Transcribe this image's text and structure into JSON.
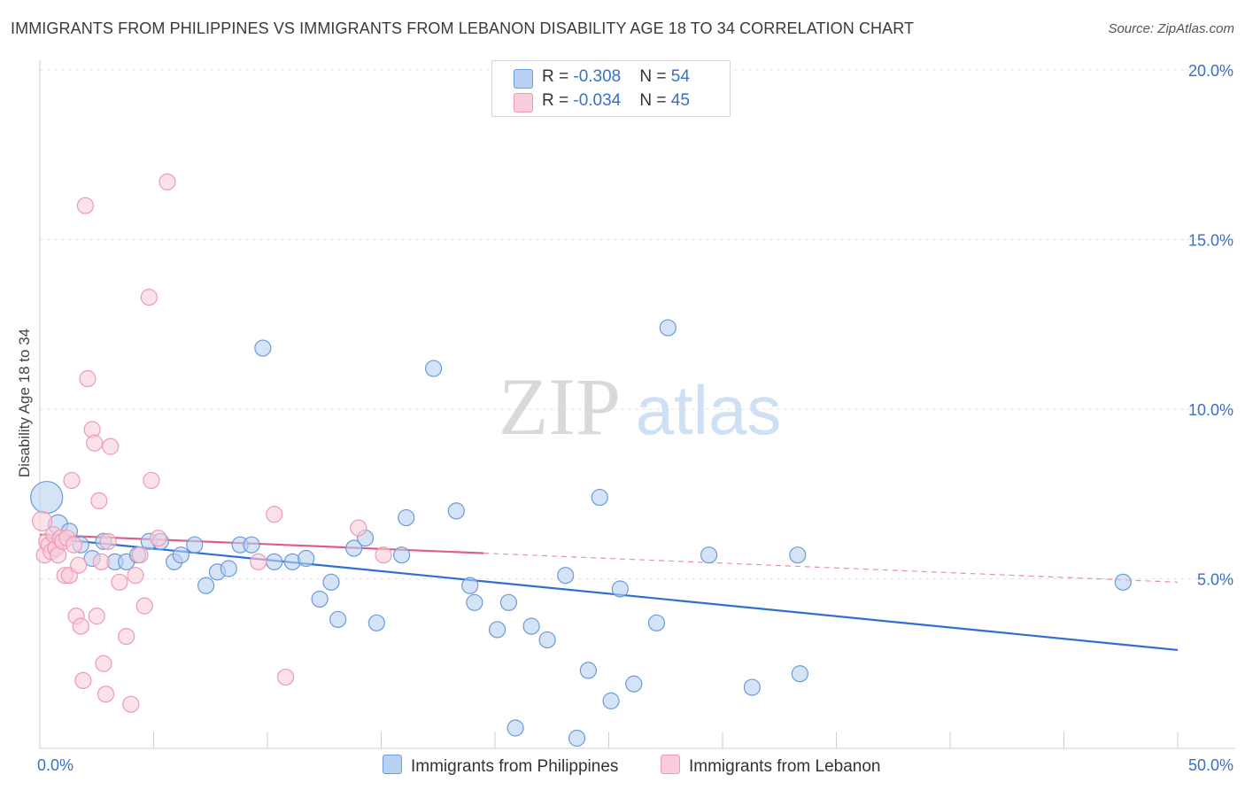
{
  "chart_data": {
    "type": "scatter",
    "title": "IMMIGRANTS FROM PHILIPPINES VS IMMIGRANTS FROM LEBANON DISABILITY AGE 18 TO 34 CORRELATION CHART",
    "source": "Source: ZipAtlas.com",
    "watermark": {
      "zip": "ZIP",
      "atlas": "atlas"
    },
    "ylabel": "Disability Age 18 to 34",
    "xlim": [
      0,
      50
    ],
    "ylim": [
      0,
      20
    ],
    "x_tick_labels": {
      "min": "0.0%",
      "max": "50.0%"
    },
    "y_ticks": [
      {
        "value": 5,
        "label": "5.0%"
      },
      {
        "value": 10,
        "label": "10.0%"
      },
      {
        "value": 15,
        "label": "15.0%"
      },
      {
        "value": 20,
        "label": "20.0%"
      }
    ],
    "legend": [
      {
        "r_label": "R = ",
        "r_value": "-0.308",
        "n_label": "N = ",
        "n_value": "54"
      },
      {
        "r_label": "R = ",
        "r_value": "-0.034",
        "n_label": "N = ",
        "n_value": "45"
      }
    ],
    "series": [
      {
        "name": "Immigrants from Philippines",
        "color": "#6b9bd8",
        "fill": "#b9d1f0",
        "trend_color": "#2f6fd0",
        "trend": {
          "x0": 0.3,
          "y0": 6.2,
          "x1": 50.0,
          "y1": 2.9,
          "dash_from": null
        },
        "points": [
          [
            0.3,
            7.4,
            18
          ],
          [
            0.8,
            6.6,
            11
          ],
          [
            1.3,
            6.4,
            9
          ],
          [
            1.8,
            6.0,
            9
          ],
          [
            2.3,
            5.6,
            9
          ],
          [
            2.8,
            6.1,
            9
          ],
          [
            3.3,
            5.5,
            9
          ],
          [
            3.8,
            5.5,
            9
          ],
          [
            4.3,
            5.7,
            9
          ],
          [
            4.8,
            6.1,
            9
          ],
          [
            5.3,
            6.1,
            9
          ],
          [
            5.9,
            5.5,
            9
          ],
          [
            6.2,
            5.7,
            9
          ],
          [
            6.8,
            6.0,
            9
          ],
          [
            7.3,
            4.8,
            9
          ],
          [
            7.8,
            5.2,
            9
          ],
          [
            8.3,
            5.3,
            9
          ],
          [
            8.8,
            6.0,
            9
          ],
          [
            9.3,
            6.0,
            9
          ],
          [
            9.8,
            11.8,
            9
          ],
          [
            10.3,
            5.5,
            9
          ],
          [
            11.1,
            5.5,
            9
          ],
          [
            11.7,
            5.6,
            9
          ],
          [
            12.3,
            4.4,
            9
          ],
          [
            12.8,
            4.9,
            9
          ],
          [
            13.1,
            3.8,
            9
          ],
          [
            13.8,
            5.9,
            9
          ],
          [
            14.3,
            6.2,
            9
          ],
          [
            14.8,
            3.7,
            9
          ],
          [
            15.9,
            5.7,
            9
          ],
          [
            16.1,
            6.8,
            9
          ],
          [
            17.3,
            11.2,
            9
          ],
          [
            18.3,
            7.0,
            9
          ],
          [
            18.9,
            4.8,
            9
          ],
          [
            19.1,
            4.3,
            9
          ],
          [
            20.1,
            3.5,
            9
          ],
          [
            20.6,
            4.3,
            9
          ],
          [
            20.9,
            0.6,
            9
          ],
          [
            21.6,
            3.6,
            9
          ],
          [
            22.3,
            3.2,
            9
          ],
          [
            23.1,
            5.1,
            9
          ],
          [
            23.6,
            0.3,
            9
          ],
          [
            24.1,
            2.3,
            9
          ],
          [
            24.6,
            7.4,
            9
          ],
          [
            25.1,
            1.4,
            9
          ],
          [
            25.5,
            4.7,
            9
          ],
          [
            26.1,
            1.9,
            9
          ],
          [
            27.1,
            3.7,
            9
          ],
          [
            27.6,
            12.4,
            9
          ],
          [
            29.4,
            5.7,
            9
          ],
          [
            31.3,
            1.8,
            9
          ],
          [
            33.3,
            5.7,
            9
          ],
          [
            33.4,
            2.2,
            9
          ],
          [
            47.6,
            4.9,
            9
          ]
        ]
      },
      {
        "name": "Immigrants from Lebanon",
        "color": "#ee9ab5",
        "fill": "#f9cdd9",
        "trend_color": "#e05f8a",
        "trend": {
          "x0": 0.0,
          "y0": 6.3,
          "x1": 50.0,
          "y1": 4.9,
          "dash_from": 19.5
        },
        "points": [
          [
            0.1,
            6.7,
            11
          ],
          [
            0.2,
            5.7,
            9
          ],
          [
            0.3,
            6.1,
            9
          ],
          [
            0.4,
            6.0,
            9
          ],
          [
            0.5,
            5.8,
            9
          ],
          [
            0.6,
            6.3,
            9
          ],
          [
            0.7,
            5.9,
            9
          ],
          [
            0.8,
            5.7,
            9
          ],
          [
            0.9,
            6.2,
            9
          ],
          [
            1.0,
            6.1,
            9
          ],
          [
            1.1,
            5.1,
            9
          ],
          [
            1.2,
            6.2,
            9
          ],
          [
            1.3,
            5.1,
            9
          ],
          [
            1.4,
            7.9,
            9
          ],
          [
            1.5,
            6.0,
            9
          ],
          [
            1.6,
            3.9,
            9
          ],
          [
            1.7,
            5.4,
            9
          ],
          [
            1.8,
            3.6,
            9
          ],
          [
            1.9,
            2.0,
            9
          ],
          [
            2.0,
            16.0,
            9
          ],
          [
            2.1,
            10.9,
            9
          ],
          [
            2.3,
            9.4,
            9
          ],
          [
            2.4,
            9.0,
            9
          ],
          [
            2.5,
            3.9,
            9
          ],
          [
            2.6,
            7.3,
            9
          ],
          [
            2.7,
            5.5,
            9
          ],
          [
            2.8,
            2.5,
            9
          ],
          [
            2.9,
            1.6,
            9
          ],
          [
            3.0,
            6.1,
            9
          ],
          [
            3.1,
            8.9,
            9
          ],
          [
            3.5,
            4.9,
            9
          ],
          [
            3.8,
            3.3,
            9
          ],
          [
            4.0,
            1.3,
            9
          ],
          [
            4.2,
            5.1,
            9
          ],
          [
            4.4,
            5.7,
            9
          ],
          [
            4.6,
            4.2,
            9
          ],
          [
            4.8,
            13.3,
            9
          ],
          [
            4.9,
            7.9,
            9
          ],
          [
            5.6,
            16.7,
            9
          ],
          [
            9.6,
            5.5,
            9
          ],
          [
            10.3,
            6.9,
            9
          ],
          [
            10.8,
            2.1,
            9
          ],
          [
            14.0,
            6.5,
            9
          ],
          [
            15.1,
            5.7,
            9
          ],
          [
            5.2,
            6.2,
            9
          ]
        ]
      }
    ]
  }
}
